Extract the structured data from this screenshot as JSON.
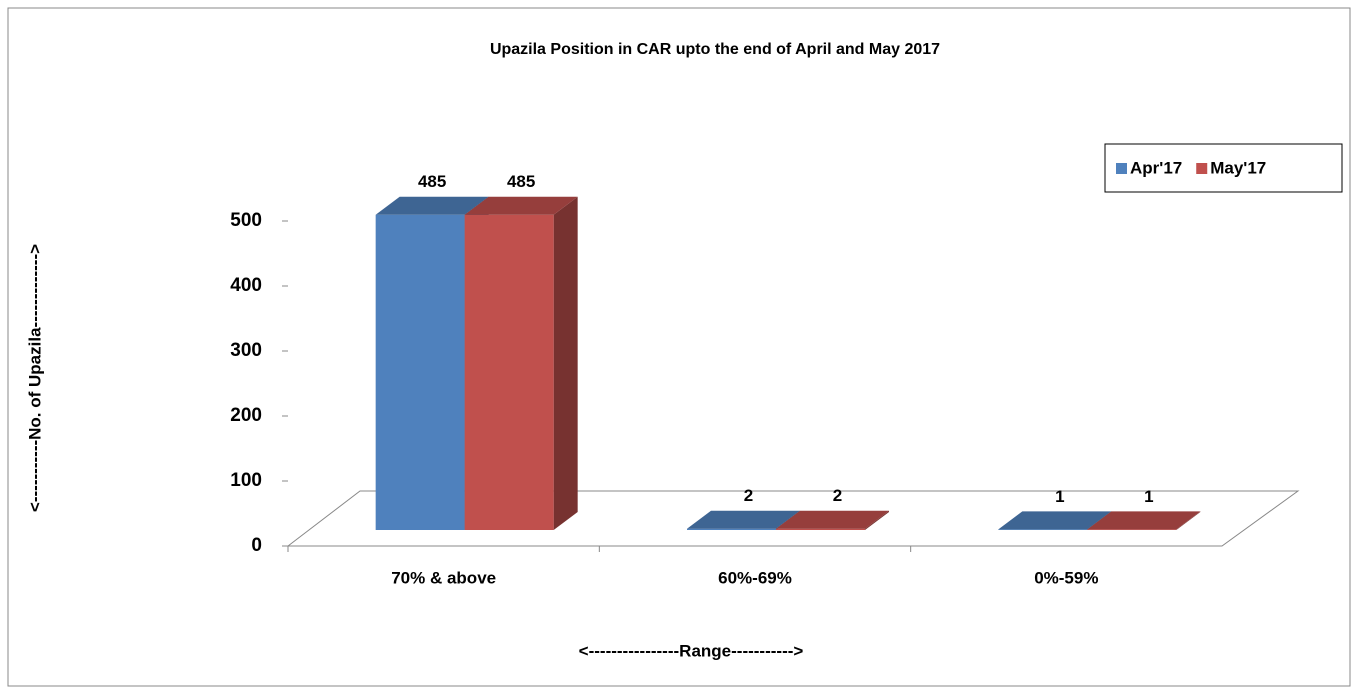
{
  "chart_data": {
    "type": "bar3d",
    "title": "Upazila Position in CAR upto the end of  April and May 2017",
    "x_label": "<----------------Range----------->",
    "y_label": "<-----------No. of Upazila------------->",
    "categories": [
      "70% & above",
      "60%-69%",
      "0%-59%"
    ],
    "series": [
      {
        "name": "Apr'17",
        "color": "#4f81bd",
        "values": [
          485,
          2,
          1
        ]
      },
      {
        "name": "May'17",
        "color": "#c0504d",
        "values": [
          485,
          2,
          1
        ]
      }
    ],
    "ylim": [
      0,
      500
    ],
    "yticks": [
      0,
      100,
      200,
      300,
      400,
      500
    ],
    "legend": "top-right"
  }
}
